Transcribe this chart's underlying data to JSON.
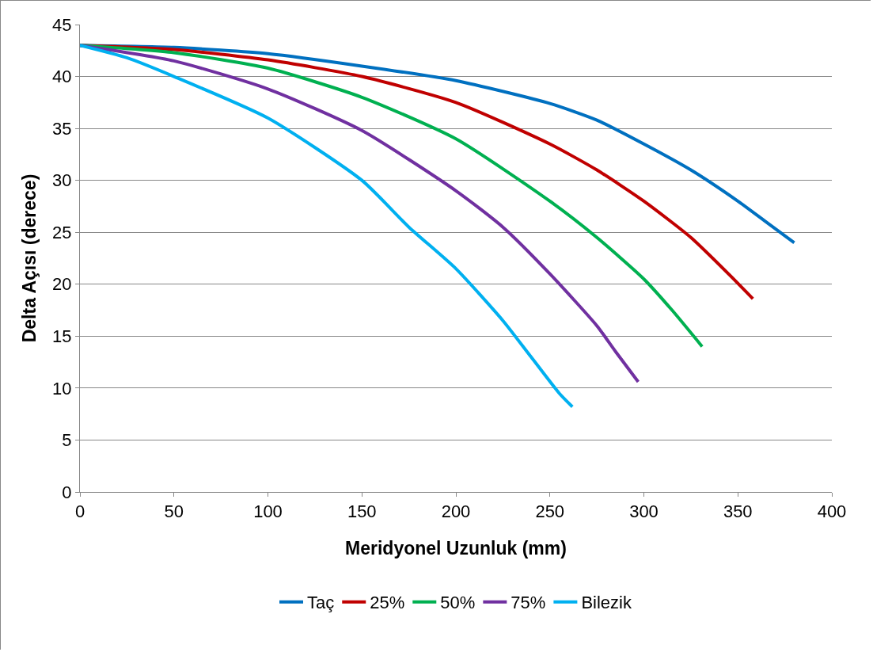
{
  "chart_data": {
    "type": "line",
    "xlabel": "Meridyonel Uzunluk (mm)",
    "ylabel": "Delta Açısı (derece)",
    "xlim": [
      0,
      400
    ],
    "xticks": [
      0,
      50,
      100,
      150,
      200,
      250,
      300,
      350,
      400
    ],
    "ylim": [
      0,
      45
    ],
    "yticks": [
      0,
      5,
      10,
      15,
      20,
      25,
      30,
      35,
      40,
      45
    ],
    "grid": "y",
    "legend": "bottom",
    "marker": "none",
    "line_style": "solid",
    "series": [
      {
        "name": "Taç",
        "color": "#0070c0",
        "x": [
          0,
          50,
          100,
          150,
          200,
          250,
          275,
          300,
          325,
          350,
          365,
          380
        ],
        "values": [
          43,
          42.8,
          42.2,
          41,
          39.6,
          37.4,
          35.8,
          33.5,
          31,
          28,
          26,
          24
        ]
      },
      {
        "name": "25%",
        "color": "#c00000",
        "x": [
          0,
          50,
          100,
          150,
          200,
          250,
          275,
          300,
          325,
          345,
          358
        ],
        "values": [
          43,
          42.6,
          41.6,
          40,
          37.5,
          33.5,
          31,
          28,
          24.5,
          21,
          18.6
        ]
      },
      {
        "name": "50%",
        "color": "#00b050",
        "x": [
          0,
          50,
          100,
          150,
          200,
          250,
          275,
          300,
          315,
          331
        ],
        "values": [
          43,
          42.3,
          40.8,
          38,
          34,
          28,
          24.5,
          20.5,
          17.5,
          14
        ]
      },
      {
        "name": "75%",
        "color": "#7030a0",
        "x": [
          0,
          50,
          100,
          150,
          200,
          225,
          250,
          275,
          285,
          297
        ],
        "values": [
          43,
          41.5,
          38.8,
          34.8,
          29,
          25.5,
          21,
          16,
          13.5,
          10.6
        ]
      },
      {
        "name": "Bilezik",
        "color": "#00b0f0",
        "x": [
          0,
          25,
          50,
          100,
          150,
          175,
          200,
          225,
          240,
          255,
          262
        ],
        "values": [
          43,
          41.8,
          40,
          36,
          30,
          25.5,
          21.5,
          16.5,
          13,
          9.5,
          8.2
        ]
      }
    ]
  }
}
